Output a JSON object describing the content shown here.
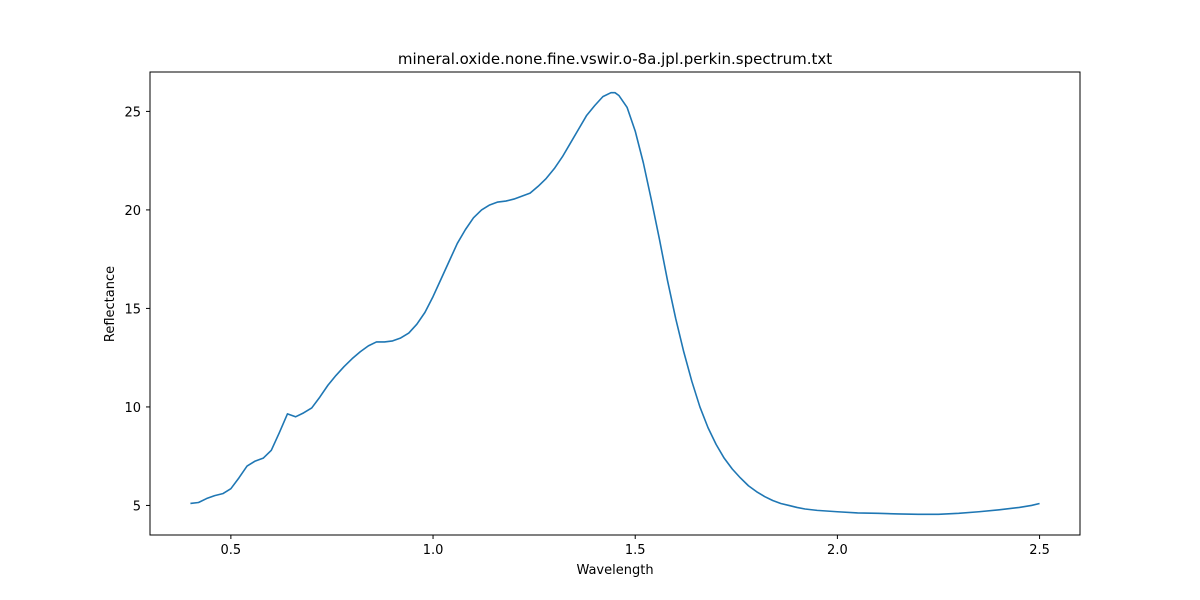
{
  "chart_data": {
    "type": "line",
    "title": "mineral.oxide.none.fine.vswir.o-8a.jpl.perkin.spectrum.txt",
    "xlabel": "Wavelength",
    "ylabel": "Reflectance",
    "xlim": [
      0.3,
      2.6
    ],
    "ylim": [
      3.5,
      27.0
    ],
    "xticks": [
      0.5,
      1.0,
      1.5,
      2.0,
      2.5
    ],
    "xtick_labels": [
      "0.5",
      "1.0",
      "1.5",
      "2.0",
      "2.5"
    ],
    "yticks": [
      5,
      10,
      15,
      20,
      25
    ],
    "ytick_labels": [
      "5",
      "10",
      "15",
      "20",
      "25"
    ],
    "grid": false,
    "line_color": "#1f77b4",
    "series": [
      {
        "x": [
          0.4,
          0.42,
          0.44,
          0.46,
          0.48,
          0.5,
          0.52,
          0.54,
          0.56,
          0.58,
          0.6,
          0.62,
          0.64,
          0.66,
          0.68,
          0.7,
          0.72,
          0.74,
          0.76,
          0.78,
          0.8,
          0.82,
          0.84,
          0.86,
          0.88,
          0.9,
          0.92,
          0.94,
          0.96,
          0.98,
          1.0,
          1.02,
          1.04,
          1.06,
          1.08,
          1.1,
          1.12,
          1.14,
          1.16,
          1.18,
          1.2,
          1.22,
          1.24,
          1.26,
          1.28,
          1.3,
          1.32,
          1.34,
          1.36,
          1.38,
          1.4,
          1.42,
          1.44,
          1.45,
          1.46,
          1.48,
          1.5,
          1.52,
          1.54,
          1.56,
          1.58,
          1.6,
          1.62,
          1.64,
          1.66,
          1.68,
          1.7,
          1.72,
          1.74,
          1.76,
          1.78,
          1.8,
          1.82,
          1.84,
          1.86,
          1.88,
          1.9,
          1.92,
          1.95,
          2.0,
          2.05,
          2.1,
          2.15,
          2.2,
          2.25,
          2.3,
          2.35,
          2.4,
          2.45,
          2.48,
          2.5
        ],
        "y": [
          5.1,
          5.15,
          5.35,
          5.5,
          5.6,
          5.85,
          6.4,
          7.0,
          7.25,
          7.4,
          7.8,
          8.7,
          9.65,
          9.5,
          9.7,
          9.95,
          10.5,
          11.1,
          11.6,
          12.05,
          12.45,
          12.8,
          13.1,
          13.3,
          13.3,
          13.35,
          13.5,
          13.75,
          14.2,
          14.8,
          15.6,
          16.5,
          17.4,
          18.3,
          19.0,
          19.6,
          20.0,
          20.25,
          20.4,
          20.45,
          20.55,
          20.7,
          20.85,
          21.2,
          21.6,
          22.1,
          22.7,
          23.4,
          24.1,
          24.8,
          25.3,
          25.75,
          25.95,
          25.95,
          25.8,
          25.2,
          24.0,
          22.4,
          20.5,
          18.5,
          16.4,
          14.5,
          12.8,
          11.3,
          10.0,
          8.95,
          8.1,
          7.4,
          6.85,
          6.4,
          6.0,
          5.7,
          5.45,
          5.25,
          5.1,
          5.0,
          4.9,
          4.82,
          4.75,
          4.68,
          4.62,
          4.6,
          4.57,
          4.55,
          4.55,
          4.6,
          4.68,
          4.78,
          4.9,
          5.0,
          5.1
        ]
      }
    ]
  }
}
